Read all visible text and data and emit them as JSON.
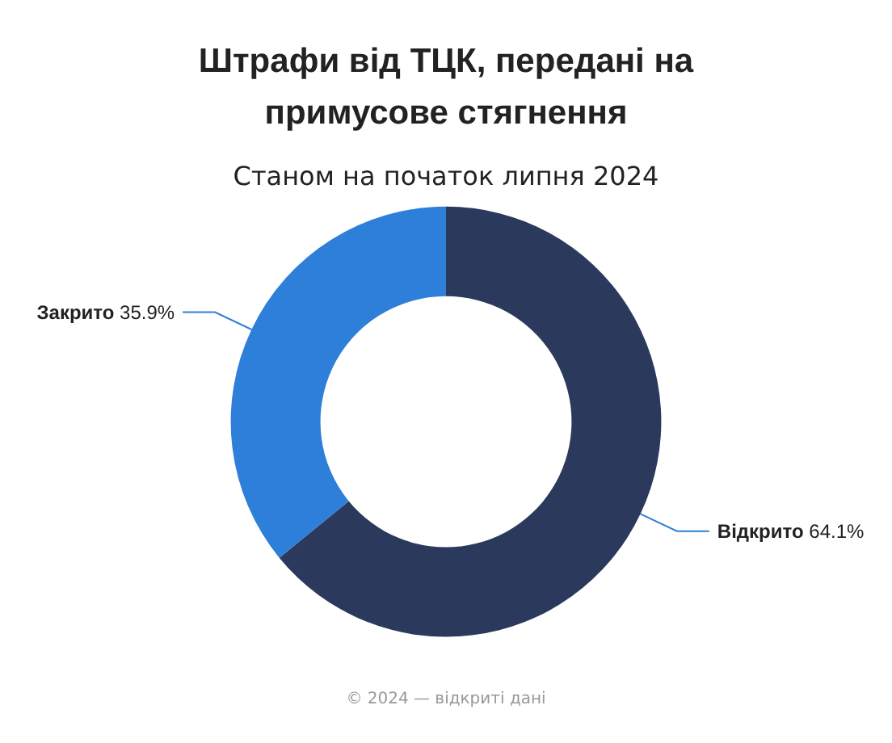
{
  "chart_data": {
    "type": "donut",
    "title": "Штрафи від ТЦК, передані на примусове стягнення",
    "subtitle": "Станом на початок липня 2024",
    "categories": [
      "Відкрито",
      "Закрито"
    ],
    "values": [
      64.1,
      35.9
    ],
    "colors": [
      "#2b3a5c",
      "#2e7fd9"
    ],
    "value_labels": [
      "64.1%",
      "35.9%"
    ],
    "legend": false,
    "annotations": [
      "© 2024 — відкриті дані"
    ]
  }
}
